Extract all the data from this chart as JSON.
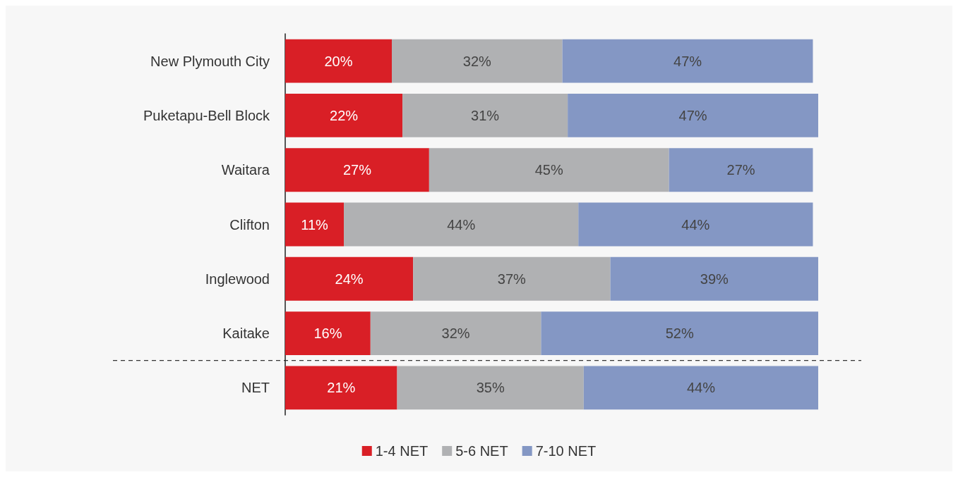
{
  "chart_data": {
    "type": "bar",
    "orientation": "horizontal",
    "stacked": true,
    "categories": [
      "New Plymouth City",
      "Puketapu-Bell Block",
      "Waitara",
      "Clifton",
      "Inglewood",
      "Kaitake",
      "NET"
    ],
    "series": [
      {
        "name": "1-4 NET",
        "color": "#d91f26",
        "values": [
          20,
          22,
          27,
          11,
          24,
          16,
          21
        ],
        "value_labels": [
          "20%",
          "22%",
          "27%",
          "11%",
          "24%",
          "16%",
          "21%"
        ]
      },
      {
        "name": "5-6 NET",
        "color": "#b0b1b3",
        "values": [
          32,
          31,
          45,
          44,
          37,
          32,
          35
        ],
        "value_labels": [
          "32%",
          "31%",
          "45%",
          "44%",
          "37%",
          "32%",
          "35%"
        ]
      },
      {
        "name": "7-10 NET",
        "color": "#8497c4",
        "values": [
          47,
          47,
          27,
          44,
          39,
          52,
          44
        ],
        "value_labels": [
          "47%",
          "47%",
          "27%",
          "44%",
          "39%",
          "52%",
          "44%"
        ]
      }
    ],
    "xlim": [
      0,
      100
    ],
    "tick_labels": "y",
    "grid": false,
    "legend": "bottom"
  }
}
